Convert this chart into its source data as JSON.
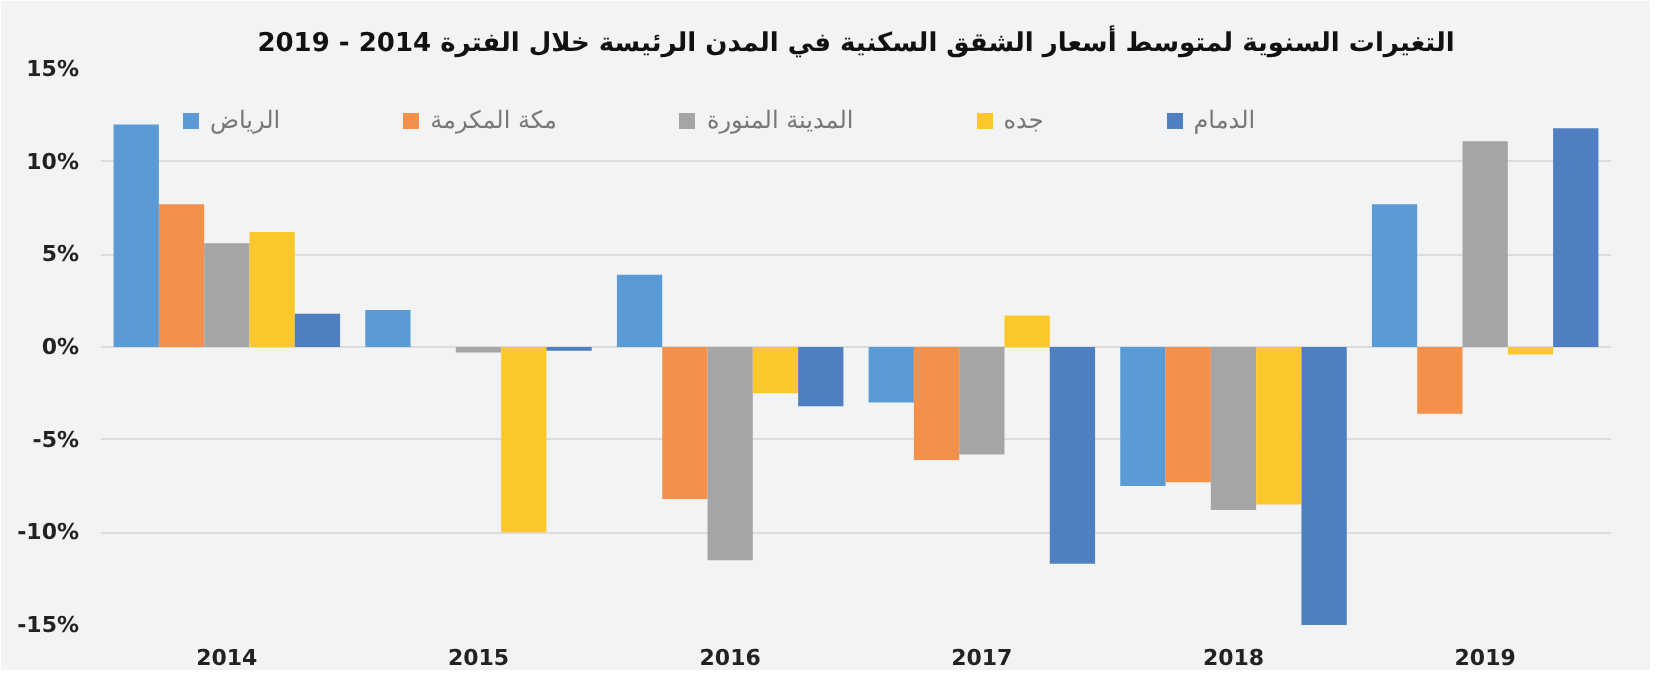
{
  "chart_data": {
    "type": "bar",
    "title": "التغيرات السنوية لمتوسط أسعار الشقق السكنية في المدن الرئيسة خلال الفترة 2014 - 2019",
    "categories": [
      "2014",
      "2015",
      "2016",
      "2017",
      "2018",
      "2019"
    ],
    "series": [
      {
        "name": "الرياض",
        "color": "#5b9bd5",
        "values": [
          12.0,
          2.0,
          3.9,
          -3.0,
          -7.5,
          7.7
        ]
      },
      {
        "name": "مكة المكرمة",
        "color": "#f4904a",
        "values": [
          7.7,
          0,
          -8.2,
          -6.1,
          -7.3,
          -3.6
        ]
      },
      {
        "name": "المدينة المنورة",
        "color": "#a5a5a5",
        "values": [
          5.6,
          -0.3,
          -11.5,
          -5.8,
          -8.8,
          11.1
        ]
      },
      {
        "name": "جده",
        "color": "#fcc72a",
        "values": [
          6.2,
          -10.0,
          -2.5,
          1.7,
          -8.5,
          -0.4
        ]
      },
      {
        "name": "الدمام",
        "color": "#4f7fc0",
        "values": [
          1.8,
          -0.2,
          -3.2,
          -11.7,
          -15.0,
          11.8
        ]
      }
    ],
    "ylim": [
      -15,
      15
    ],
    "yticks": [
      {
        "value": -15,
        "label": "-15%"
      },
      {
        "value": -10,
        "label": "-10%"
      },
      {
        "value": -5,
        "label": "-5%"
      },
      {
        "value": 0,
        "label": "0%"
      },
      {
        "value": 5,
        "label": "5%"
      },
      {
        "value": 10,
        "label": "10%"
      },
      {
        "value": 15,
        "label": "15%"
      }
    ],
    "grid": "y",
    "legend": "top"
  }
}
